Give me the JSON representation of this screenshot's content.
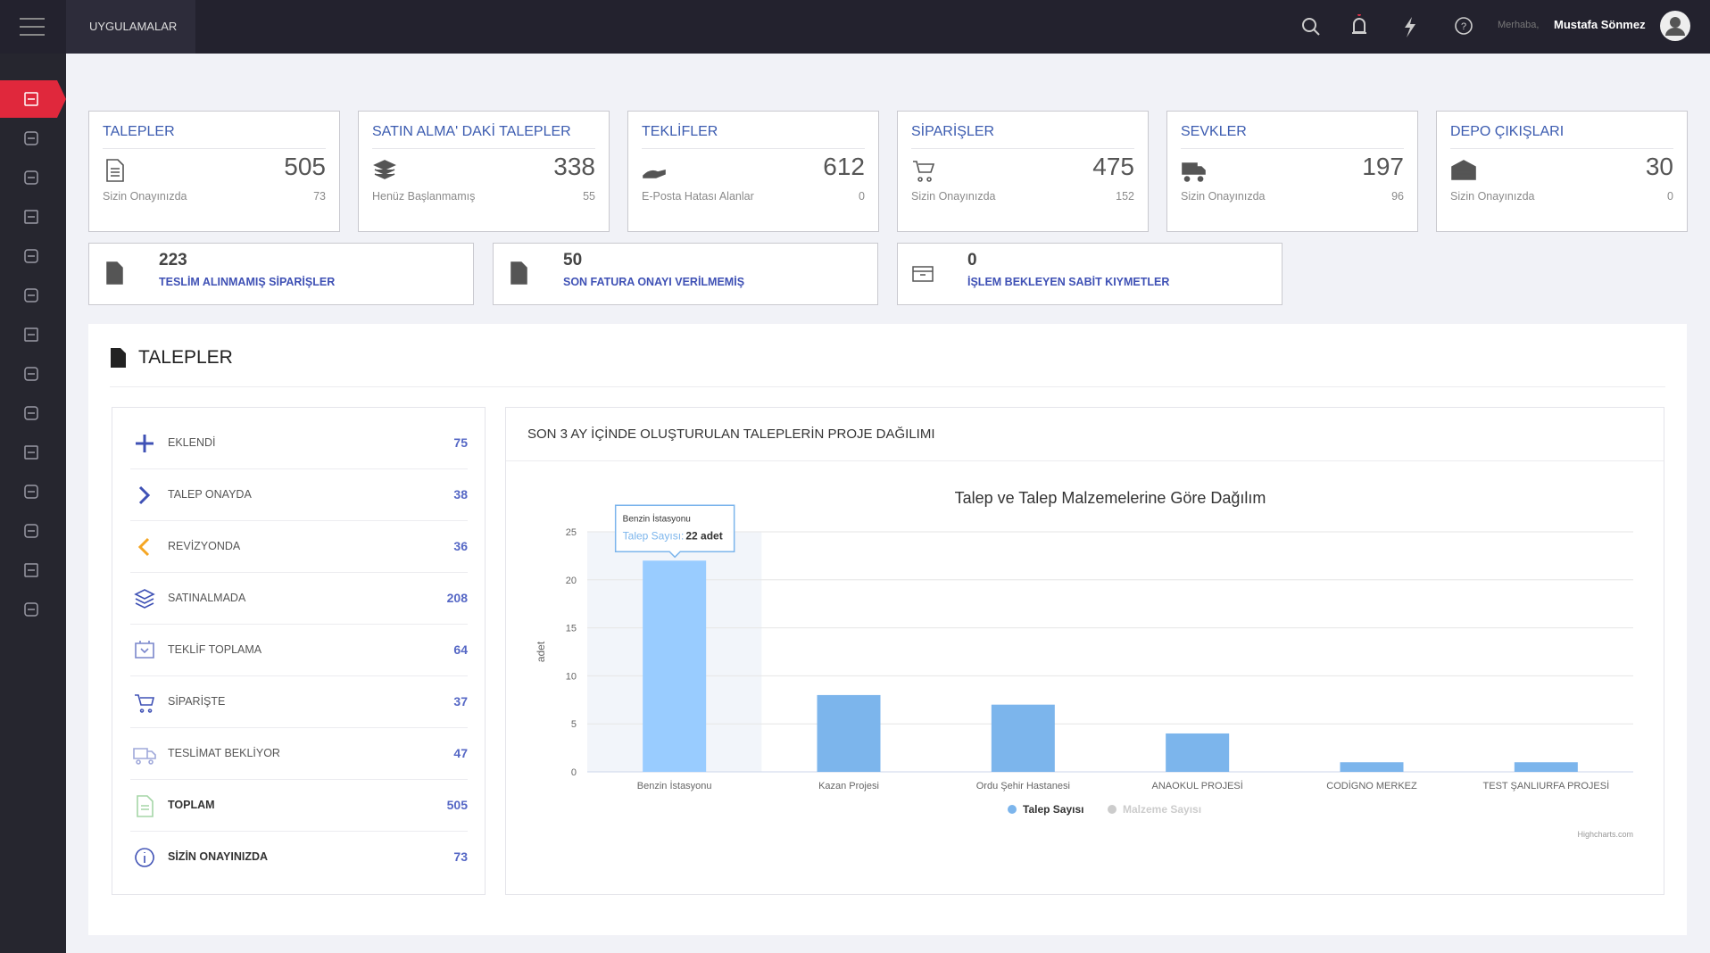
{
  "header": {
    "apps": "UYGULAMALAR",
    "greeting": "Merhaba,",
    "user": "Mustafa Sönmez"
  },
  "cards": [
    {
      "title": "TALEPLER",
      "value": "505",
      "sub": "Sizin Onayınızda",
      "sub_value": "73"
    },
    {
      "title": "SATIN ALMA' DAKİ TALEPLER",
      "value": "338",
      "sub": "Henüz Başlanmamış",
      "sub_value": "55"
    },
    {
      "title": "TEKLİFLER",
      "value": "612",
      "sub": "E-Posta Hatası Alanlar",
      "sub_value": "0"
    },
    {
      "title": "SİPARİŞLER",
      "value": "475",
      "sub": "Sizin Onayınızda",
      "sub_value": "152"
    },
    {
      "title": "SEVKLER",
      "value": "197",
      "sub": "Sizin Onayınızda",
      "sub_value": "96"
    },
    {
      "title": "DEPO ÇIKIŞLARI",
      "value": "30",
      "sub": "Sizin Onayınızda",
      "sub_value": "0"
    }
  ],
  "wide_cards": [
    {
      "value": "223",
      "label": "TESLİM ALINMAMIŞ SİPARİŞLER"
    },
    {
      "value": "50",
      "label": "SON FATURA ONAYI VERİLMEMİŞ"
    },
    {
      "value": "0",
      "label": "İŞLEM BEKLEYEN SABİT KIYMETLER"
    }
  ],
  "section": {
    "title": "TALEPLER"
  },
  "status_list": [
    {
      "label": "EKLENDİ",
      "value": "75"
    },
    {
      "label": "TALEP ONAYDA",
      "value": "38"
    },
    {
      "label": "REVİZYONDA",
      "value": "36"
    },
    {
      "label": "SATINALMADA",
      "value": "208"
    },
    {
      "label": "TEKLİF TOPLAMA",
      "value": "64"
    },
    {
      "label": "SİPARİŞTE",
      "value": "37"
    },
    {
      "label": "TESLİMAT BEKLİYOR",
      "value": "47"
    },
    {
      "label": "TOPLAM",
      "value": "505"
    },
    {
      "label": "SİZİN ONAYINIZDA",
      "value": "73"
    }
  ],
  "chart_panel": {
    "title": "SON 3 AY İÇİNDE OLUŞTURULAN TALEPLERİN PROJE DAĞILIMI"
  },
  "chart_data": {
    "type": "bar",
    "title": "Talep ve Talep Malzemelerine Göre Dağılım",
    "categories": [
      "Benzin İstasyonu",
      "Kazan Projesi",
      "Ordu Şehir Hastanesi",
      "ANAOKUL PROJESİ",
      "CODİGNO MERKEZ",
      "TEST ŞANLIURFA PROJESİ"
    ],
    "series": [
      {
        "name": "Talep Sayısı",
        "color": "#7cb5ec",
        "visible": true,
        "values": [
          22,
          8,
          7,
          4,
          1,
          1
        ]
      },
      {
        "name": "Malzeme Sayısı",
        "color": "#cccccc",
        "visible": false,
        "values": [
          null,
          null,
          null,
          null,
          null,
          null
        ]
      }
    ],
    "y_label": "adet",
    "ylim": [
      0,
      25
    ],
    "yticks": [
      0,
      5,
      10,
      15,
      20,
      25
    ],
    "grid": true,
    "legend": "bottom",
    "tooltip": {
      "title": "Benzin İstasyonu",
      "series": "Talep Sayısı:",
      "value_label": "22 adet"
    },
    "credits": "Highcharts.com"
  }
}
